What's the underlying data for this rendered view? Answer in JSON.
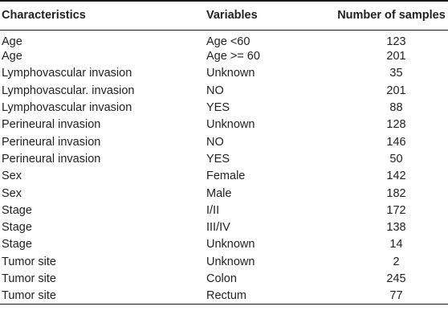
{
  "table": {
    "headers": [
      "Characteristics",
      "Variables",
      "Number of samples"
    ],
    "rows": [
      [
        "Age",
        "Age <60",
        "123"
      ],
      [
        "Age",
        "Age >= 60",
        "201"
      ],
      [
        "Lymphovascular invasion",
        "Unknown",
        "35"
      ],
      [
        "Lymphovascular. invasion",
        "NO",
        "201"
      ],
      [
        "Lymphovascular invasion",
        "YES",
        "88"
      ],
      [
        "Perineural invasion",
        "Unknown",
        "128"
      ],
      [
        "Perineural invasion",
        "NO",
        "146"
      ],
      [
        "Perineural invasion",
        "YES",
        "50"
      ],
      [
        "Sex",
        "Female",
        "142"
      ],
      [
        "Sex",
        "Male",
        "182"
      ],
      [
        "Stage",
        "I/II",
        "172"
      ],
      [
        "Stage",
        "III/IV",
        "138"
      ],
      [
        "Stage",
        "Unknown",
        "14"
      ],
      [
        "Tumor site",
        "Unknown",
        "2"
      ],
      [
        "Tumor site",
        "Colon",
        "245"
      ],
      [
        "Tumor site",
        "Rectum",
        "77"
      ]
    ]
  }
}
